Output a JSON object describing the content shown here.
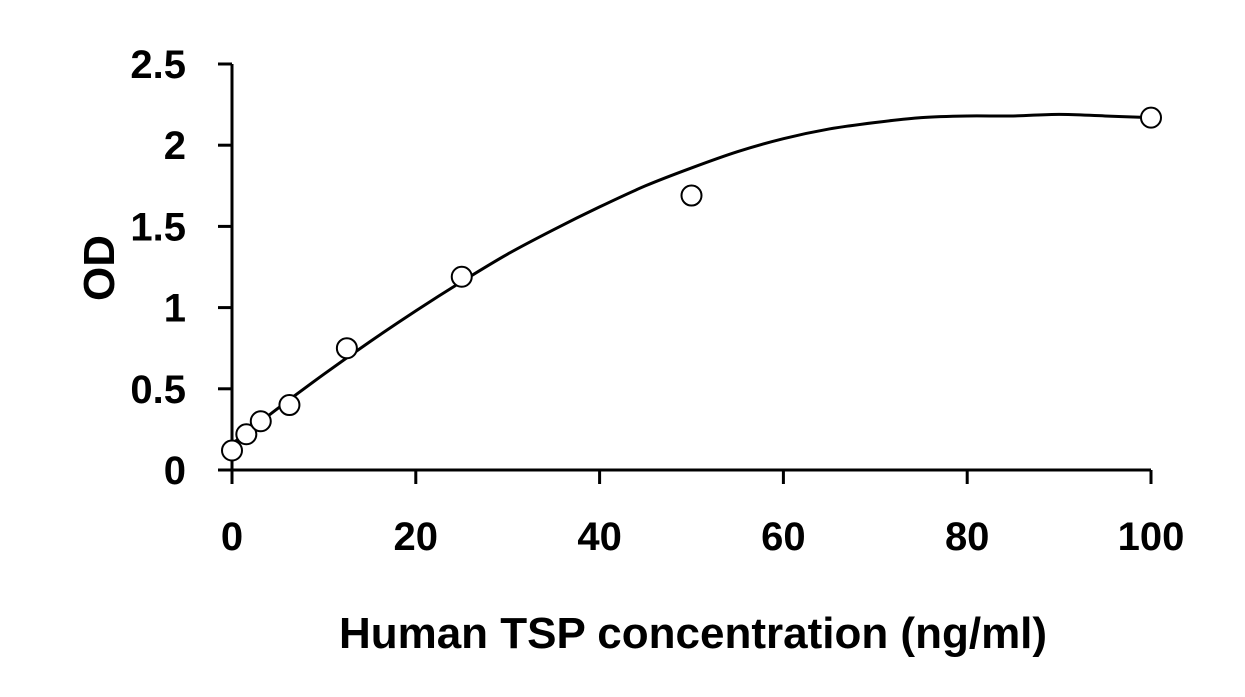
{
  "chart_data": {
    "type": "scatter",
    "title": "",
    "xlabel": "Human TSP concentration (ng/ml)",
    "ylabel": "OD",
    "xlim": [
      0,
      100
    ],
    "ylim": [
      0,
      2.5
    ],
    "x_ticks": [
      0,
      20,
      40,
      60,
      80,
      100
    ],
    "y_ticks": [
      0,
      0.5,
      1,
      1.5,
      2,
      2.5
    ],
    "x_tick_labels": [
      "0",
      "20",
      "40",
      "60",
      "80",
      "100"
    ],
    "y_tick_labels": [
      "0",
      "0.5",
      "1",
      "1.5",
      "2",
      "2.5"
    ],
    "grid": false,
    "series": [
      {
        "marker": "open-circle",
        "x": [
          0,
          1.56,
          3.13,
          6.25,
          12.5,
          25,
          50,
          100
        ],
        "y": [
          0.12,
          0.22,
          0.3,
          0.4,
          0.75,
          1.19,
          1.69,
          2.17
        ]
      }
    ],
    "fit_curve": {
      "type": "polynomial-2",
      "x": [
        0,
        5,
        10,
        15,
        20,
        25,
        30,
        35,
        40,
        45,
        50,
        55,
        60,
        65,
        70,
        75,
        80,
        85,
        90,
        95,
        100
      ],
      "y": [
        0.16,
        0.38,
        0.59,
        0.79,
        0.98,
        1.16,
        1.33,
        1.48,
        1.62,
        1.75,
        1.86,
        1.96,
        2.04,
        2.1,
        2.14,
        2.17,
        2.18,
        2.18,
        2.19,
        2.18,
        2.17
      ]
    }
  }
}
